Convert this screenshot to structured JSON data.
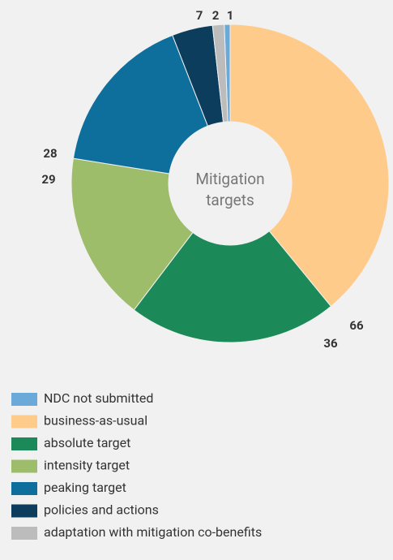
{
  "chart_data": {
    "type": "donut",
    "center_label": "Mitigation targets",
    "categories": [
      "NDC not submitted",
      "business-as-usual",
      "absolute target",
      "intensity target",
      "peaking target",
      "policies and actions",
      "adaptation with mitigation co-benefits"
    ],
    "values": [
      1,
      66,
      36,
      29,
      28,
      7,
      2
    ],
    "colors": [
      "#6aaad8",
      "#fecb8a",
      "#1b8a58",
      "#9dbd6b",
      "#0e6e9c",
      "#0c3d5c",
      "#bcbcbc"
    ]
  }
}
